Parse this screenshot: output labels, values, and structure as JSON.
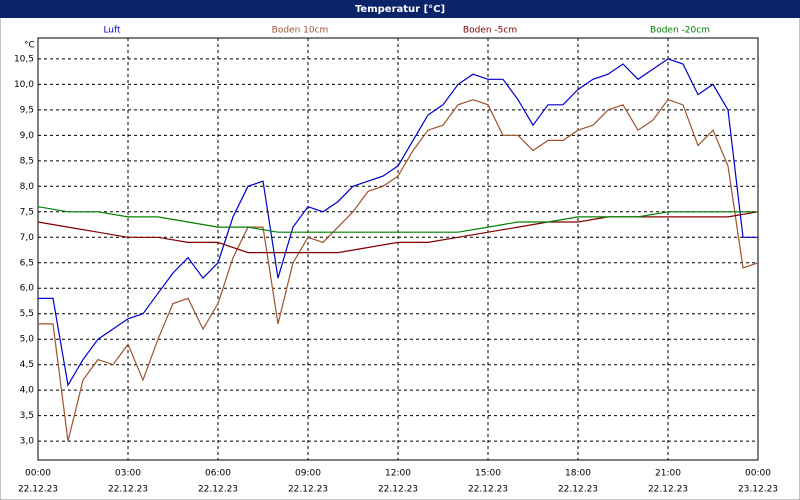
{
  "chart_data": {
    "type": "line",
    "title": "Temperatur [°C]",
    "y_unit": "°C",
    "xlim": [
      0,
      24
    ],
    "ylim": [
      2.63,
      10.91
    ],
    "grid": true,
    "xticks": [
      {
        "value": 0,
        "label": "00:00"
      },
      {
        "value": 3,
        "label": "03:00"
      },
      {
        "value": 6,
        "label": "06:00"
      },
      {
        "value": 9,
        "label": "09:00"
      },
      {
        "value": 12,
        "label": "12:00"
      },
      {
        "value": 15,
        "label": "15:00"
      },
      {
        "value": 18,
        "label": "18:00"
      },
      {
        "value": 21,
        "label": "21:00"
      },
      {
        "value": 24,
        "label": "00:00"
      }
    ],
    "xtick_dates": [
      "22.12.23",
      "22.12.23",
      "22.12.23",
      "22.12.23",
      "22.12.23",
      "22.12.23",
      "22.12.23",
      "22.12.23",
      "23.12.23"
    ],
    "yticks": [
      {
        "value": 3,
        "label": "3,0"
      },
      {
        "value": 3.5,
        "label": "3,5"
      },
      {
        "value": 4,
        "label": "4,0"
      },
      {
        "value": 4.5,
        "label": "4,5"
      },
      {
        "value": 5,
        "label": "5,0"
      },
      {
        "value": 5.5,
        "label": "5,5"
      },
      {
        "value": 6,
        "label": "6,0"
      },
      {
        "value": 6.5,
        "label": "6,5"
      },
      {
        "value": 7,
        "label": "7,0"
      },
      {
        "value": 7.5,
        "label": "7,5"
      },
      {
        "value": 8,
        "label": "8,0"
      },
      {
        "value": 8.5,
        "label": "8,5"
      },
      {
        "value": 9,
        "label": "9,0"
      },
      {
        "value": 9.5,
        "label": "9,5"
      },
      {
        "value": 10,
        "label": "10,0"
      },
      {
        "value": 10.5,
        "label": "10,5"
      }
    ],
    "series": [
      {
        "name": "Luft",
        "color": "#0000cc",
        "x": [
          0,
          0.5,
          1,
          1.5,
          2,
          2.5,
          3,
          3.5,
          4,
          4.5,
          5,
          5.5,
          6,
          6.5,
          7,
          7.5,
          8,
          8.5,
          9,
          9.5,
          10,
          10.5,
          11,
          11.5,
          12,
          12.5,
          13,
          13.5,
          14,
          14.5,
          15,
          15.5,
          16,
          16.5,
          17,
          17.5,
          18,
          18.5,
          19,
          19.5,
          20,
          20.5,
          21,
          21.5,
          22,
          22.5,
          23,
          23.5,
          24
        ],
        "values": [
          5.8,
          5.8,
          4.1,
          4.6,
          5.0,
          5.2,
          5.4,
          5.5,
          5.9,
          6.3,
          6.6,
          6.2,
          6.5,
          7.4,
          8.0,
          8.1,
          6.2,
          7.2,
          7.6,
          7.5,
          7.7,
          8.0,
          8.1,
          8.2,
          8.4,
          8.9,
          9.4,
          9.6,
          10.0,
          10.2,
          10.1,
          10.1,
          9.7,
          9.2,
          9.6,
          9.6,
          9.9,
          10.1,
          10.2,
          10.4,
          10.1,
          10.3,
          10.5,
          10.4,
          9.8,
          10.0,
          9.5,
          7.0,
          7.0
        ]
      },
      {
        "name": "Boden 10cm",
        "color": "#a0522d",
        "x": [
          0,
          0.5,
          1,
          1.5,
          2,
          2.5,
          3,
          3.5,
          4,
          4.5,
          5,
          5.5,
          6,
          6.5,
          7,
          7.5,
          8,
          8.5,
          9,
          9.5,
          10,
          10.5,
          11,
          11.5,
          12,
          12.5,
          13,
          13.5,
          14,
          14.5,
          15,
          15.5,
          16,
          16.5,
          17,
          17.5,
          18,
          18.5,
          19,
          19.5,
          20,
          20.5,
          21,
          21.5,
          22,
          22.5,
          23,
          23.5,
          24
        ],
        "values": [
          5.3,
          5.3,
          3.0,
          4.2,
          4.6,
          4.5,
          4.9,
          4.2,
          5.0,
          5.7,
          5.8,
          5.2,
          5.7,
          6.6,
          7.2,
          7.2,
          5.3,
          6.5,
          7.0,
          6.9,
          7.2,
          7.5,
          7.9,
          8.0,
          8.2,
          8.7,
          9.1,
          9.2,
          9.6,
          9.7,
          9.6,
          9.0,
          9.0,
          8.7,
          8.9,
          8.9,
          9.1,
          9.2,
          9.5,
          9.6,
          9.1,
          9.3,
          9.7,
          9.6,
          8.8,
          9.1,
          8.4,
          6.4,
          6.5
        ]
      },
      {
        "name": "Boden -5cm",
        "color": "#800000",
        "x": [
          0,
          1,
          2,
          3,
          4,
          5,
          6,
          7,
          8,
          9,
          10,
          11,
          12,
          13,
          14,
          15,
          16,
          17,
          18,
          19,
          20,
          21,
          22,
          23,
          24
        ],
        "values": [
          7.3,
          7.2,
          7.1,
          7.0,
          7.0,
          6.9,
          6.9,
          6.7,
          6.7,
          6.7,
          6.7,
          6.8,
          6.9,
          6.9,
          7.0,
          7.1,
          7.2,
          7.3,
          7.3,
          7.4,
          7.4,
          7.4,
          7.4,
          7.4,
          7.5
        ]
      },
      {
        "name": "Boden -20cm",
        "color": "#008000",
        "x": [
          0,
          1,
          2,
          3,
          4,
          5,
          6,
          7,
          8,
          9,
          10,
          11,
          12,
          13,
          14,
          15,
          16,
          17,
          18,
          19,
          20,
          21,
          22,
          23,
          24
        ],
        "values": [
          7.6,
          7.5,
          7.5,
          7.4,
          7.4,
          7.3,
          7.2,
          7.2,
          7.1,
          7.1,
          7.1,
          7.1,
          7.1,
          7.1,
          7.1,
          7.2,
          7.3,
          7.3,
          7.4,
          7.4,
          7.4,
          7.5,
          7.5,
          7.5,
          7.5
        ]
      }
    ]
  }
}
